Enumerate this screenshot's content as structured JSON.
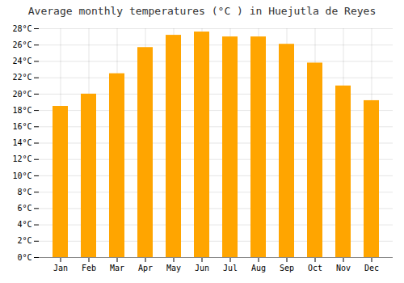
{
  "chart_data": {
    "type": "bar",
    "title": "Average monthly temperatures (°C ) in Huejutla de Reyes",
    "categories": [
      "Jan",
      "Feb",
      "Mar",
      "Apr",
      "May",
      "Jun",
      "Jul",
      "Aug",
      "Sep",
      "Oct",
      "Nov",
      "Dec"
    ],
    "values": [
      18.5,
      20.0,
      22.5,
      25.7,
      27.2,
      27.6,
      27.0,
      27.0,
      26.1,
      23.8,
      21.0,
      19.2
    ],
    "color": "#FFA500",
    "ylim": [
      0,
      28
    ],
    "yticks": [
      {
        "value": 0,
        "label": "0°C"
      },
      {
        "value": 2,
        "label": "2°C"
      },
      {
        "value": 4,
        "label": "4°C"
      },
      {
        "value": 6,
        "label": "6°C"
      },
      {
        "value": 8,
        "label": "8°C"
      },
      {
        "value": 10,
        "label": "10°C"
      },
      {
        "value": 12,
        "label": "12°C"
      },
      {
        "value": 14,
        "label": "14°C"
      },
      {
        "value": 16,
        "label": "16°C"
      },
      {
        "value": 18,
        "label": "18°C"
      },
      {
        "value": 20,
        "label": "20°C"
      },
      {
        "value": 22,
        "label": "22°C"
      },
      {
        "value": 24,
        "label": "24°C"
      },
      {
        "value": 26,
        "label": "26°C"
      },
      {
        "value": 28,
        "label": "28°C"
      }
    ],
    "grid": true
  }
}
